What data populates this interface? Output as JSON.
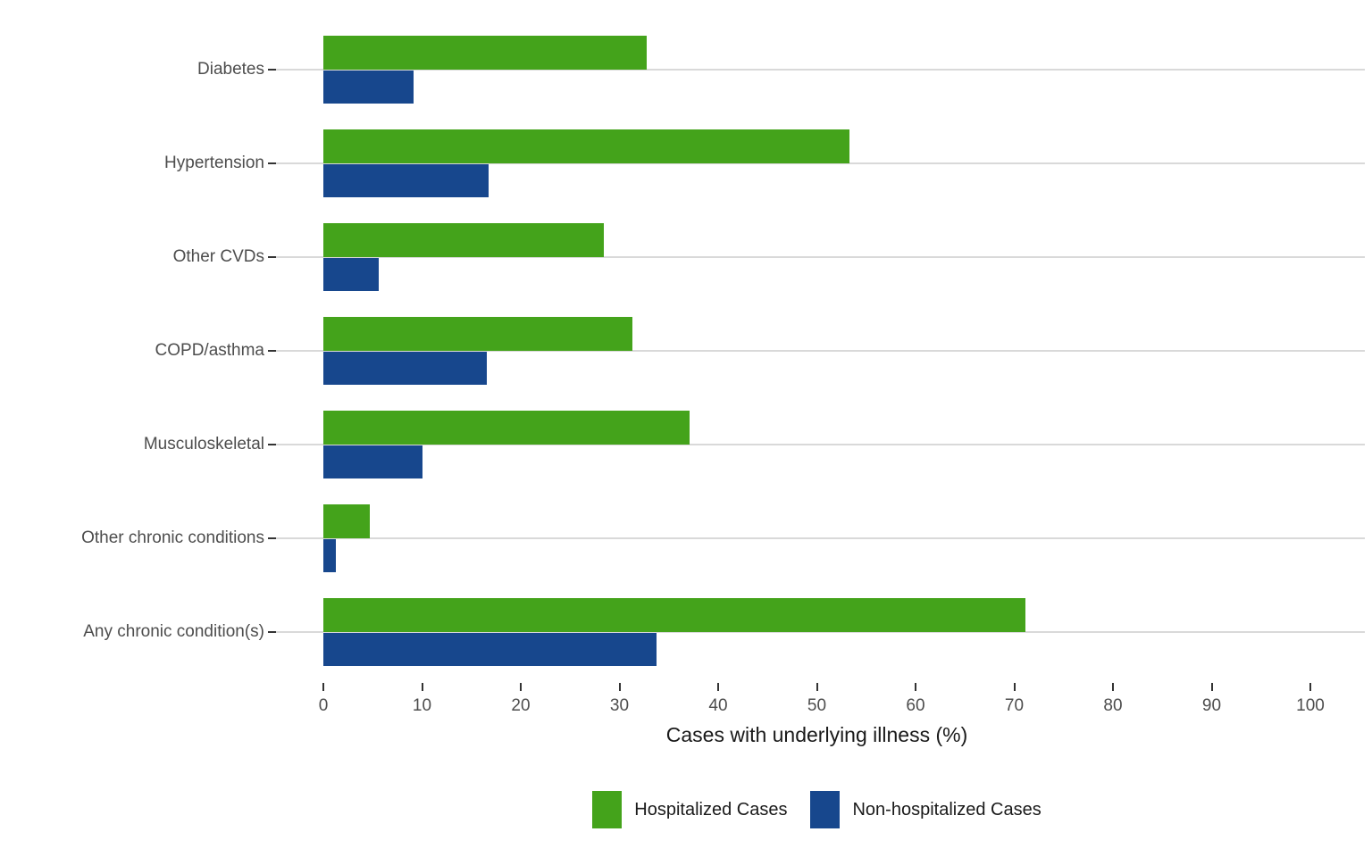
{
  "chart_data": {
    "type": "bar",
    "orientation": "horizontal",
    "title": "",
    "xlabel": "Cases with underlying illness (%)",
    "ylabel": "",
    "xlim": [
      0,
      100
    ],
    "xticks": [
      0,
      10,
      20,
      30,
      40,
      50,
      60,
      70,
      80,
      90,
      100
    ],
    "grid": "horizontal-major-only",
    "legend_position": "bottom",
    "categories": [
      "Diabetes",
      "Hypertension",
      "Other CVDs",
      "COPD/asthma",
      "Musculoskeletal",
      "Other chronic conditions",
      "Any chronic condition(s)"
    ],
    "series": [
      {
        "name": "Hospitalized Cases",
        "color": "#44a31b",
        "values": [
          32.8,
          53.3,
          28.4,
          31.3,
          37.1,
          4.7,
          71.1
        ]
      },
      {
        "name": "Non-hospitalized Cases",
        "color": "#17478d",
        "values": [
          9.1,
          16.7,
          5.6,
          16.6,
          10.0,
          1.3,
          33.8
        ]
      }
    ]
  },
  "style_colors": {
    "gridline": "#d9d9d9",
    "tick_mark": "#333333",
    "tick_label": "#4d4d4d",
    "axis_title": "#1a1a1a"
  }
}
